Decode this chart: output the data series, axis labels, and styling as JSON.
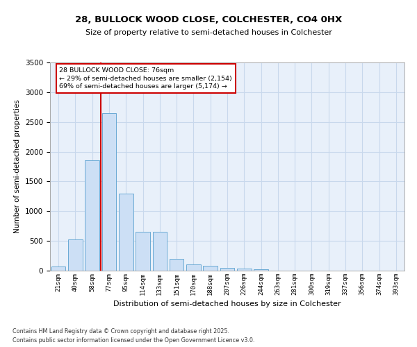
{
  "title_line1": "28, BULLOCK WOOD CLOSE, COLCHESTER, CO4 0HX",
  "title_line2": "Size of property relative to semi-detached houses in Colchester",
  "xlabel": "Distribution of semi-detached houses by size in Colchester",
  "ylabel": "Number of semi-detached properties",
  "footnote": "Contains HM Land Registry data © Crown copyright and database right 2025.\nContains public sector information licensed under the Open Government Licence v3.0.",
  "bar_categories": [
    "21sqm",
    "40sqm",
    "58sqm",
    "77sqm",
    "95sqm",
    "114sqm",
    "133sqm",
    "151sqm",
    "170sqm",
    "188sqm",
    "207sqm",
    "226sqm",
    "244sqm",
    "263sqm",
    "281sqm",
    "300sqm",
    "319sqm",
    "337sqm",
    "356sqm",
    "374sqm",
    "393sqm"
  ],
  "bar_values": [
    75,
    530,
    1850,
    2650,
    1300,
    650,
    650,
    200,
    110,
    85,
    50,
    30,
    20,
    5,
    0,
    0,
    0,
    0,
    0,
    0,
    0
  ],
  "bar_color": "#ccdff5",
  "bar_edge_color": "#6aaad4",
  "grid_color": "#c8d8ec",
  "background_color": "#e8f0fa",
  "vline_color": "#cc0000",
  "annotation_box_color": "#ffffff",
  "annotation_box_edge": "#cc0000",
  "annotation_text_color": "#000000",
  "property_label": "28 BULLOCK WOOD CLOSE: 76sqm",
  "smaller_pct": 29,
  "smaller_count": 2154,
  "larger_pct": 69,
  "larger_count": 5174,
  "ylim": [
    0,
    3500
  ],
  "yticks": [
    0,
    500,
    1000,
    1500,
    2000,
    2500,
    3000,
    3500
  ],
  "title1_fontsize": 9.5,
  "title2_fontsize": 8.0,
  "ylabel_fontsize": 7.5,
  "xlabel_fontsize": 8.0,
  "tick_fontsize": 6.5,
  "ytick_fontsize": 7.5,
  "ann_fontsize": 6.8,
  "footnote_fontsize": 5.8
}
